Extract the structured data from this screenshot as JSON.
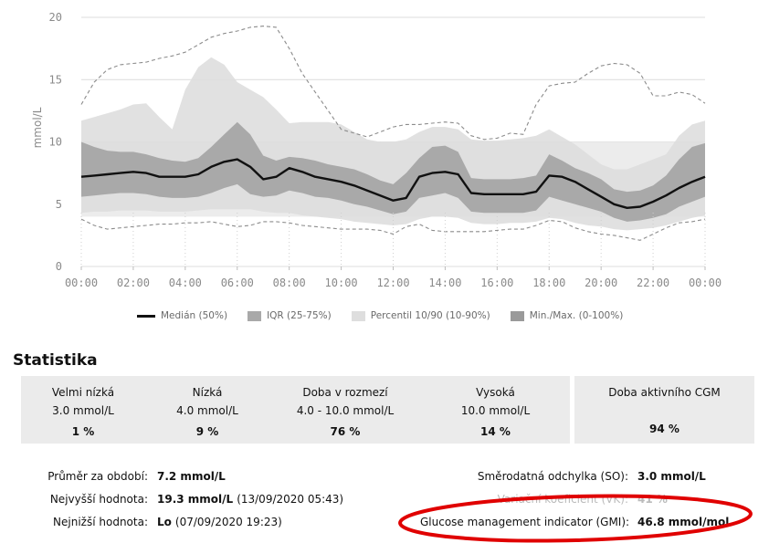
{
  "chart_data": {
    "type": "area",
    "title": "",
    "xlabel": "",
    "ylabel": "mmol/L",
    "ylim": [
      0,
      20
    ],
    "yticks": [
      0,
      5,
      10,
      15,
      20
    ],
    "xlim": [
      0,
      24
    ],
    "xticks": [
      "00:00",
      "02:00",
      "04:00",
      "06:00",
      "08:00",
      "10:00",
      "12:00",
      "14:00",
      "16:00",
      "18:00",
      "20:00",
      "22:00",
      "00:00"
    ],
    "target_range": [
      4.0,
      10.0
    ],
    "hours": [
      0,
      0.5,
      1,
      1.5,
      2,
      2.5,
      3,
      3.5,
      4,
      4.5,
      5,
      5.5,
      6,
      6.5,
      7,
      7.5,
      8,
      8.5,
      9,
      9.5,
      10,
      10.5,
      11,
      11.5,
      12,
      12.5,
      13,
      13.5,
      14,
      14.5,
      15,
      15.5,
      16,
      16.5,
      17,
      17.5,
      18,
      18.5,
      19,
      19.5,
      20,
      20.5,
      21,
      21.5,
      22,
      22.5,
      23,
      23.5,
      24
    ],
    "series": [
      {
        "name": "Medián (50%)",
        "values": [
          7.2,
          7.3,
          7.4,
          7.5,
          7.6,
          7.5,
          7.2,
          7.2,
          7.2,
          7.4,
          8.0,
          8.4,
          8.6,
          8.0,
          7.0,
          7.2,
          7.9,
          7.6,
          7.2,
          7.0,
          6.8,
          6.5,
          6.1,
          5.7,
          5.3,
          5.5,
          7.2,
          7.5,
          7.6,
          7.4,
          5.9,
          5.8,
          5.8,
          5.8,
          5.8,
          6.0,
          7.3,
          7.2,
          6.8,
          6.2,
          5.6,
          5.0,
          4.7,
          4.8,
          5.2,
          5.7,
          6.3,
          6.8,
          7.2
        ]
      },
      {
        "name": "IQR 75%",
        "values": [
          10.0,
          9.6,
          9.3,
          9.2,
          9.2,
          9.0,
          8.7,
          8.5,
          8.4,
          8.7,
          9.6,
          10.6,
          11.6,
          10.6,
          8.9,
          8.5,
          8.8,
          8.7,
          8.5,
          8.2,
          8.0,
          7.8,
          7.4,
          6.9,
          6.6,
          7.5,
          8.7,
          9.6,
          9.7,
          9.2,
          7.1,
          7.0,
          7.0,
          7.0,
          7.1,
          7.3,
          9.0,
          8.5,
          7.9,
          7.5,
          7.0,
          6.2,
          6.0,
          6.1,
          6.5,
          7.3,
          8.6,
          9.6,
          9.9
        ]
      },
      {
        "name": "IQR 25%",
        "values": [
          5.6,
          5.7,
          5.8,
          5.9,
          5.9,
          5.8,
          5.6,
          5.5,
          5.5,
          5.6,
          5.9,
          6.3,
          6.6,
          5.8,
          5.6,
          5.7,
          6.1,
          5.9,
          5.6,
          5.5,
          5.3,
          5.0,
          4.8,
          4.5,
          4.2,
          4.4,
          5.5,
          5.7,
          5.9,
          5.5,
          4.4,
          4.3,
          4.3,
          4.3,
          4.3,
          4.5,
          5.6,
          5.3,
          5.0,
          4.7,
          4.4,
          3.9,
          3.6,
          3.7,
          3.9,
          4.2,
          4.8,
          5.2,
          5.6
        ]
      },
      {
        "name": "Percentil 90%",
        "values": [
          11.7,
          12.0,
          12.3,
          12.6,
          13.0,
          13.1,
          12.0,
          11.0,
          14.2,
          16.0,
          16.8,
          16.2,
          14.8,
          14.2,
          13.6,
          12.6,
          11.5,
          11.6,
          11.6,
          11.6,
          11.4,
          10.8,
          10.2,
          10.0,
          10.0,
          10.2,
          10.8,
          11.2,
          11.2,
          11.0,
          10.2,
          10.1,
          10.1,
          10.2,
          10.3,
          10.5,
          11.0,
          10.4,
          9.8,
          9.0,
          8.2,
          7.8,
          7.8,
          8.2,
          8.6,
          9.0,
          10.5,
          11.4,
          11.7
        ]
      },
      {
        "name": "Percentil 10%",
        "values": [
          4.3,
          4.4,
          4.4,
          4.5,
          4.5,
          4.5,
          4.4,
          4.4,
          4.4,
          4.5,
          4.6,
          4.6,
          4.6,
          4.6,
          4.4,
          4.3,
          4.3,
          4.1,
          4.0,
          3.9,
          3.8,
          3.6,
          3.5,
          3.4,
          3.3,
          3.4,
          3.8,
          4.0,
          4.0,
          3.9,
          3.5,
          3.4,
          3.4,
          3.5,
          3.5,
          3.6,
          3.9,
          3.8,
          3.5,
          3.3,
          3.2,
          3.0,
          2.9,
          3.0,
          3.1,
          3.3,
          3.6,
          3.9,
          4.1
        ]
      },
      {
        "name": "Max (100%)",
        "values": [
          13.0,
          14.8,
          15.8,
          16.2,
          16.3,
          16.4,
          16.7,
          16.9,
          17.2,
          17.8,
          18.4,
          18.7,
          18.9,
          19.2,
          19.3,
          19.2,
          17.5,
          15.5,
          14.0,
          12.5,
          11.0,
          10.7,
          10.4,
          10.8,
          11.2,
          11.4,
          11.4,
          11.5,
          11.6,
          11.5,
          10.5,
          10.2,
          10.3,
          10.7,
          10.6,
          13.0,
          14.5,
          14.7,
          14.8,
          15.5,
          16.1,
          16.3,
          16.2,
          15.5,
          13.7,
          13.7,
          14.0,
          13.8,
          13.1
        ]
      },
      {
        "name": "Min (0%)",
        "values": [
          3.8,
          3.3,
          3.0,
          3.1,
          3.2,
          3.3,
          3.4,
          3.4,
          3.5,
          3.5,
          3.6,
          3.4,
          3.2,
          3.3,
          3.6,
          3.6,
          3.5,
          3.3,
          3.2,
          3.1,
          3.0,
          3.0,
          3.0,
          2.9,
          2.6,
          3.2,
          3.4,
          2.9,
          2.8,
          2.8,
          2.8,
          2.8,
          2.9,
          3.0,
          3.0,
          3.3,
          3.7,
          3.6,
          3.1,
          2.8,
          2.6,
          2.5,
          2.3,
          2.1,
          2.6,
          3.1,
          3.5,
          3.6,
          3.8
        ]
      }
    ],
    "legend": [
      {
        "label": "Medián (50%)",
        "kind": "line",
        "color": "#111111"
      },
      {
        "label": "IQR (25-75%)",
        "kind": "box",
        "color": "#a9a9a9"
      },
      {
        "label": "Percentil 10/90 (10-90%)",
        "kind": "box",
        "color": "#dedede"
      },
      {
        "label": "Min./Max. (0-100%)",
        "kind": "box",
        "color": "#9a9a9a"
      }
    ],
    "legend_position": "bottom"
  },
  "colors": {
    "median": "#111111",
    "iqr": "#a9a9a9",
    "percentile": "#dedede",
    "target_band": "#ececec",
    "minmax_line": "#8c8c8c",
    "grid": "#dcdcdc",
    "annotation": "#e00000"
  },
  "stats": {
    "title": "Statistika",
    "ranges": [
      {
        "name": "Velmi nízká",
        "threshold": "3.0 mmol/L",
        "percent": "1 %"
      },
      {
        "name": "Nízká",
        "threshold": "4.0 mmol/L",
        "percent": "9 %"
      },
      {
        "name": "Doba v rozmezí",
        "threshold": "4.0 - 10.0 mmol/L",
        "percent": "76 %"
      },
      {
        "name": "Vysoká",
        "threshold": "10.0 mmol/L",
        "percent": "14 %"
      }
    ],
    "active": {
      "name": "Doba aktivního CGM",
      "percent": "94 %"
    }
  },
  "summary_left": [
    {
      "label": "Průměr za období:",
      "value": "7.2 mmol/L",
      "extra": ""
    },
    {
      "label": "Nejvyšší hodnota:",
      "value": "19.3 mmol/L",
      "extra": "(13/09/2020 05:43)"
    },
    {
      "label": "Nejnižší hodnota:",
      "value": "Lo",
      "extra": "(07/09/2020 19:23)"
    }
  ],
  "summary_right": [
    {
      "label": "Směrodatná odchylka (SO):",
      "value": "3.0 mmol/L"
    },
    {
      "label": "Variační koeficient (VK):",
      "value": "41 %"
    },
    {
      "label": "Glucose management indicator (GMI):",
      "value": "46.8 mmol/mol"
    }
  ]
}
